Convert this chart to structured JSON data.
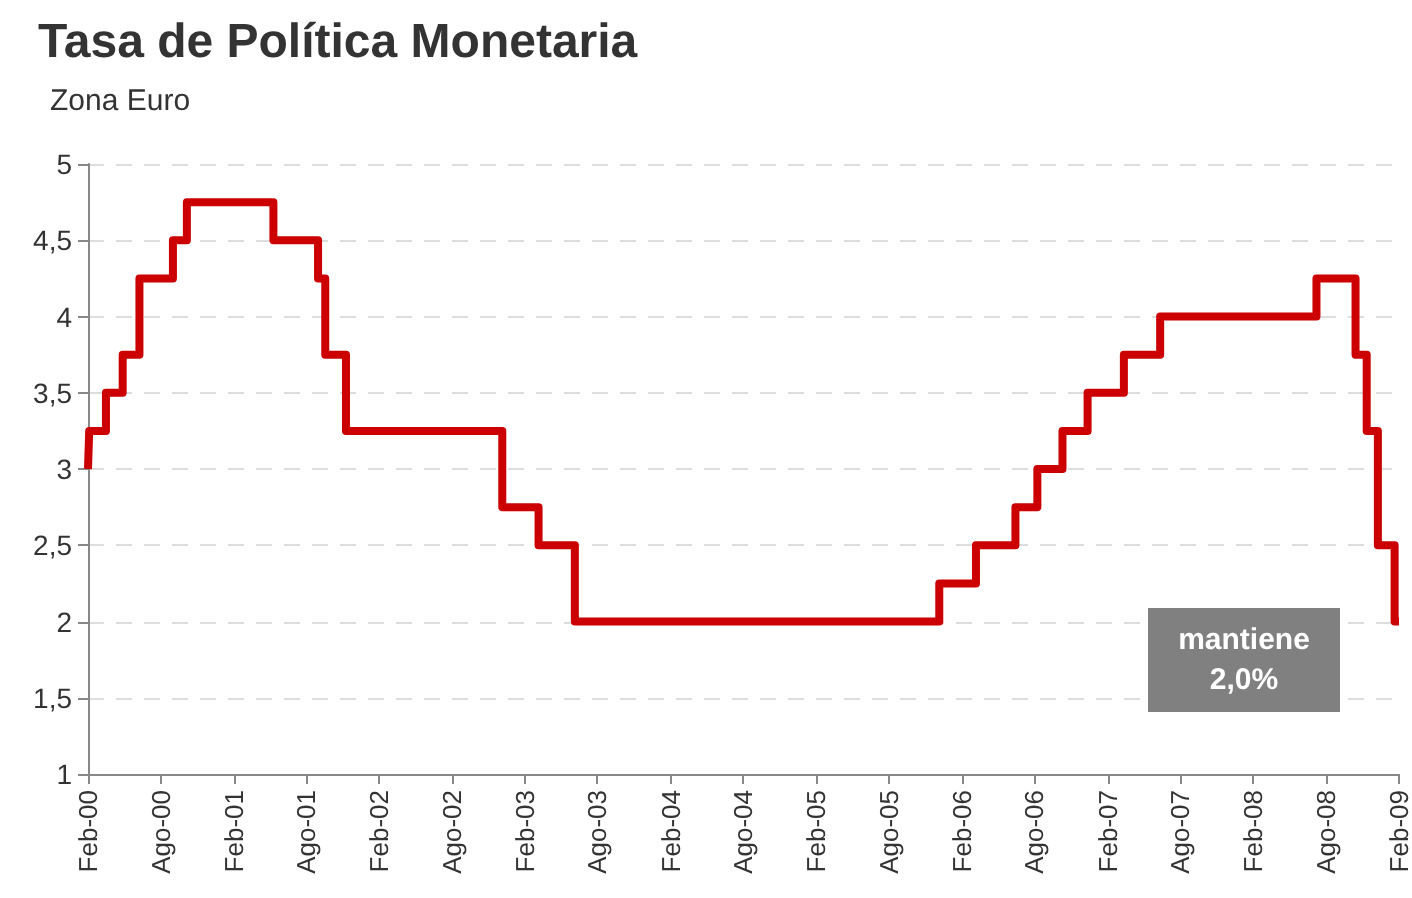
{
  "chart_data": {
    "type": "step",
    "title": "Tasa de Política Monetaria",
    "subtitle": "Zona Euro",
    "x": [
      "2000-02-01",
      "2000-02-04",
      "2000-03-17",
      "2000-04-28",
      "2000-06-09",
      "2000-09-01",
      "2000-10-06",
      "2001-05-11",
      "2001-08-31",
      "2001-09-18",
      "2001-11-09",
      "2002-12-06",
      "2003-03-07",
      "2003-06-06",
      "2005-12-06",
      "2006-03-08",
      "2006-06-15",
      "2006-08-09",
      "2006-10-11",
      "2006-12-13",
      "2007-03-14",
      "2007-06-13",
      "2008-07-09",
      "2008-10-15",
      "2008-11-12",
      "2008-12-10",
      "2009-01-21",
      "2009-02-01"
    ],
    "series": [
      {
        "color": "#cc0000",
        "values": [
          3.0,
          3.25,
          3.5,
          3.75,
          4.25,
          4.5,
          4.75,
          4.5,
          4.25,
          3.75,
          3.25,
          2.75,
          2.5,
          2.0,
          2.25,
          2.5,
          2.75,
          3.0,
          3.25,
          3.5,
          3.75,
          4.0,
          4.25,
          3.75,
          3.25,
          2.5,
          2.0,
          2.0
        ]
      }
    ],
    "xlim": [
      "2000-02-01",
      "2009-02-01"
    ],
    "xticks": [
      {
        "value": "2000-02-01",
        "label": "Feb-00"
      },
      {
        "value": "2000-08-01",
        "label": "Ago-00"
      },
      {
        "value": "2001-02-01",
        "label": "Feb-01"
      },
      {
        "value": "2001-08-01",
        "label": "Ago-01"
      },
      {
        "value": "2002-02-01",
        "label": "Feb-02"
      },
      {
        "value": "2002-08-01",
        "label": "Ago-02"
      },
      {
        "value": "2003-02-01",
        "label": "Feb-03"
      },
      {
        "value": "2003-08-01",
        "label": "Ago-03"
      },
      {
        "value": "2004-02-01",
        "label": "Feb-04"
      },
      {
        "value": "2004-08-01",
        "label": "Ago-04"
      },
      {
        "value": "2005-02-01",
        "label": "Feb-05"
      },
      {
        "value": "2005-08-01",
        "label": "Ago-05"
      },
      {
        "value": "2006-02-01",
        "label": "Feb-06"
      },
      {
        "value": "2006-08-01",
        "label": "Ago-06"
      },
      {
        "value": "2007-02-01",
        "label": "Feb-07"
      },
      {
        "value": "2007-08-01",
        "label": "Ago-07"
      },
      {
        "value": "2008-02-01",
        "label": "Feb-08"
      },
      {
        "value": "2008-08-01",
        "label": "Ago-08"
      },
      {
        "value": "2009-02-01",
        "label": "Feb-09"
      }
    ],
    "ylim": [
      1,
      5
    ],
    "yticks": [
      1,
      {
        "value": 1.5,
        "label": "1,5"
      },
      2,
      {
        "value": 2.5,
        "label": "2,5"
      },
      3,
      {
        "value": 3.5,
        "label": "3,5"
      },
      4,
      {
        "value": 4.5,
        "label": "4,5"
      },
      5
    ],
    "grid": "y",
    "marker": "none",
    "line_style": "solid",
    "annotations": [
      "mantiene\n2,0%"
    ]
  }
}
